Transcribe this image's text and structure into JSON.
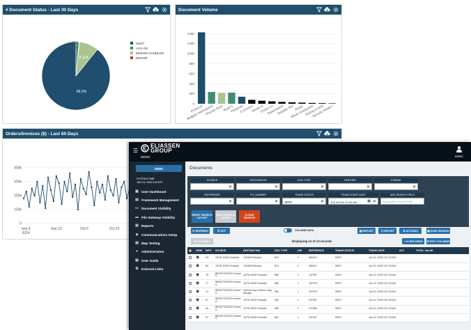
{
  "doc_status": {
    "title": "# Document Status - Last 30 Days",
    "chart_data": {
      "type": "pie",
      "labels": [
        "SENT",
        "ACK-OK",
        "ERROR-HANDLED",
        "ERROR"
      ],
      "values": [
        89.2,
        1.45,
        0.258,
        9.11
      ],
      "slice_labels": [
        "89.2%",
        "1.45%",
        "0.258%",
        "9.11%"
      ],
      "colors": [
        "#1f4e6e",
        "#3e8e6e",
        "#a9c48e",
        "#c0392b"
      ],
      "legend": "right"
    }
  },
  "doc_volume": {
    "title": "Document Volume",
    "chart_data": {
      "type": "bar",
      "categories": [
        "Productio",
        "Widgets International",
        "Pharma Store",
        "Buyer's",
        "PetSmart",
        "E Grocers",
        "Vendor A",
        "Drinks Co",
        "Supermarket",
        "Supplier 922",
        "Dealer",
        "Whole Distribution",
        "Testing A 1234",
        "Security Vendor I"
      ],
      "values": [
        1425,
        235,
        218,
        222,
        140,
        78,
        60,
        48,
        36,
        28,
        22,
        16,
        12,
        8
      ],
      "colors": [
        "#1f4e6e",
        "#3e8e6e",
        "#a9c48e",
        "#3e8e6e",
        "#1f4e6e",
        "#000000",
        "#000000",
        "#000000",
        "#000000",
        "#000000",
        "#000000",
        "#000000",
        "#000000",
        "#000000"
      ],
      "yticks": [
        "0",
        "200",
        "400",
        "600",
        "800",
        "1000",
        "1200",
        "1400"
      ],
      "ylim": [
        0,
        1500
      ]
    }
  },
  "orders": {
    "title": "Orders/Invoices ($) - Last 60 Days",
    "chart_data": {
      "type": "line",
      "ylim": [
        0,
        400000
      ],
      "yticks": [
        "0",
        "100k",
        "200k",
        "300k",
        "400k"
      ],
      "xticks": [
        "Sep 8\n2024",
        "Sep 22",
        "Oct 6",
        "Oct 20"
      ],
      "values": [
        180000,
        230000,
        120000,
        250000,
        200000,
        300000,
        150000,
        270000,
        110000,
        330000,
        240000,
        160000,
        340000,
        290000,
        140000,
        300000,
        230000,
        360000,
        190000,
        280000,
        100000,
        320000,
        250000,
        210000,
        370000,
        260000,
        130000,
        300000,
        220000,
        280000,
        170000,
        340000,
        240000,
        200000,
        320000,
        150000,
        260000,
        300000,
        180000,
        250000
      ]
    }
  },
  "app": {
    "logo_line1": "ELIASSEN",
    "logo_line2": "GROUP",
    "demo": "DEMO",
    "user": "admin",
    "sidebar_button": "DEMO",
    "system_time_label": "SYSTEM TIME",
    "system_time": "JAN 15, 2025 9:49 EST",
    "nav": [
      "User Dashboard",
      "Framework Management",
      "Document Visibility",
      "File Gateway Visibility",
      "Reports",
      "Communications Setup",
      "Map Testing",
      "Administration",
      "User Guide",
      "External Links"
    ],
    "page_title": "Documents",
    "filters_row1": [
      "SOURCE",
      "DESTINATION",
      "DOC TYPE",
      "PARTNER",
      "FORMAT"
    ],
    "filters_row2": [
      "REFERENCE",
      "PO_NUMBER",
      "TRANS STATUS",
      "TRANS START DATE",
      "ADD SEARCH FIELD"
    ],
    "trans_status_value": "SENT",
    "start_date_value": "12/14/2024 12:00 AM",
    "add_field_placeholder": "Add Another Search Field",
    "btn_reset": "RESET SEARCH LAYOUT",
    "btn_save_layout": "SAVE SEARCH LAYOUT",
    "btn_clear": "CLEAR SEARCH",
    "btn_refresh": "REFRESH",
    "btn_off": "OFF",
    "toggle_label": "VOLUME DATA",
    "btn_report": "REPORT",
    "btn_export": "EXPORT",
    "btn_actions": "ACTIONS",
    "btn_save_search": "SAVE SEARCH",
    "btn_columns": "COLUMNS",
    "btn_records": "25 RECORDS",
    "btn_edit_columns": "EDIT COLUMNS",
    "displaying": "Displaying 13 of 13 records",
    "columns": [
      "",
      "VIEW",
      "INFO",
      "SOURCE",
      "DESTINATION",
      "DOC TYPE",
      "DIR",
      "REFERENCE",
      "TRANS STATUS",
      "TRANS DATE",
      "ACT",
      "TOTAL VALUE"
    ],
    "rows": [
      [
        "",
        "",
        "94",
        "15791-NGB Productio",
        "1234567Wambol",
        "810",
        "0",
        "466415",
        "SENT",
        "Jan 13, 2025 9:07:45 AM",
        "",
        ""
      ],
      [
        "",
        "",
        "89",
        "15791-NGB Productio",
        "1234567Wambol",
        "810",
        "0",
        "466412",
        "SENT",
        "Jan 13, 2025 9:07:45 AM",
        "",
        ""
      ],
      [
        "",
        "",
        "78",
        "BB21R7262323 Vendor A",
        "15791-NGB Productio",
        "856",
        "1",
        "107932",
        "SENT",
        "Jan 13, 2025 9:07:45 AM",
        "",
        ""
      ],
      [
        "",
        "",
        "77",
        "BB21R7262323 Vendor A",
        "15791-NGB Productio",
        "856",
        "1",
        "187978",
        "SENT",
        "Jan 13, 2025 9:07:45 AM",
        "",
        ""
      ],
      [
        "",
        "",
        "74",
        "BB21R7262323 Vendor A",
        "CarbonCopy Carbon Copy Storage",
        "856",
        "1",
        "187978",
        "SENT",
        "Jan 13, 2025 9:07:45 AM",
        "",
        ""
      ],
      [
        "",
        "",
        "67",
        "BB21R7262323 Vendor A",
        "15791-NGB Productio",
        "855",
        "1",
        "237387",
        "SENT",
        "Jan 13, 2025 9:07:45 AM",
        "",
        ""
      ],
      [
        "",
        "",
        "66",
        "BB21R7262323 Vendor A",
        "15791-NGB Productio",
        "855",
        "1",
        "107688",
        "SENT",
        "Jan 13, 2025 9:07:45 AM",
        "",
        ""
      ],
      [
        "",
        "",
        "57",
        "BB21R7262323 Vendor A",
        "15791-NGB Productio",
        "850",
        "1",
        "237267",
        "SENT",
        "Jan 13, 2025 9:07:45 AM",
        "",
        ""
      ]
    ]
  }
}
